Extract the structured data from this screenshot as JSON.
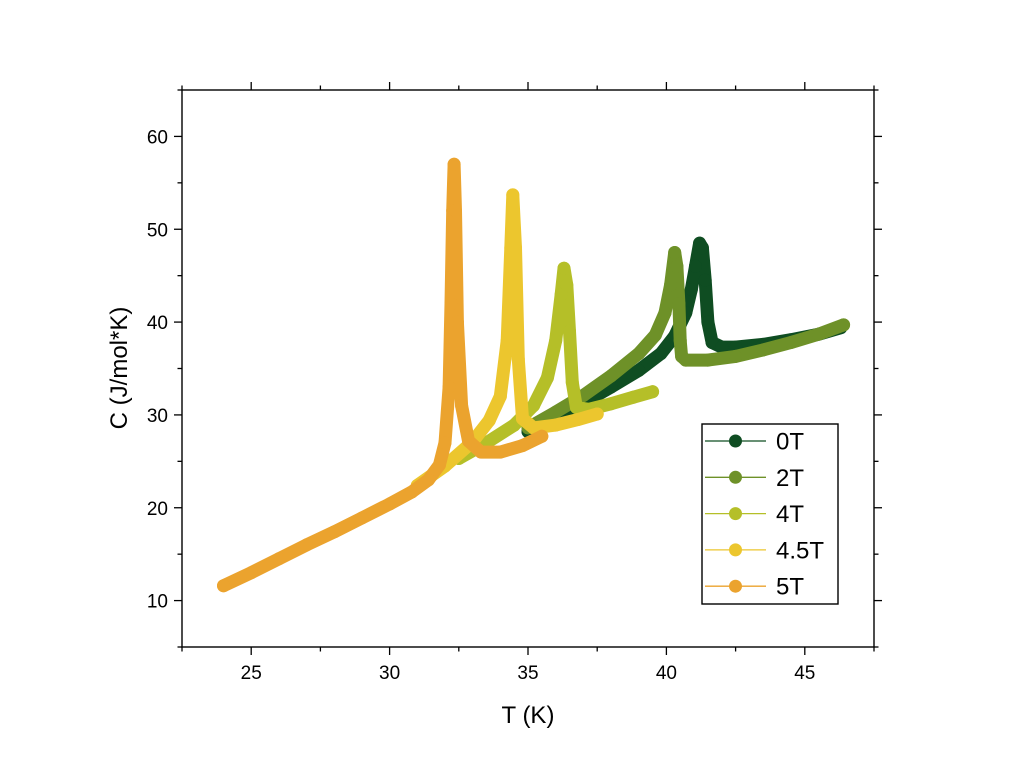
{
  "chart_data": {
    "type": "scatter",
    "title": "",
    "xlabel": "T (K)",
    "ylabel": "C (J/mol*K)",
    "xlim": [
      22.5,
      47.5
    ],
    "ylim": [
      5,
      65
    ],
    "xticks": [
      25,
      30,
      35,
      40,
      45
    ],
    "yticks": [
      10,
      20,
      30,
      40,
      50,
      60
    ],
    "legend_position": "lower-right",
    "series": [
      {
        "name": "0T",
        "color": "#0f4d22",
        "points": [
          [
            35.0,
            28.2
          ],
          [
            36.0,
            29.7
          ],
          [
            37.0,
            31.3
          ],
          [
            38.0,
            33.0
          ],
          [
            39.0,
            34.8
          ],
          [
            39.8,
            36.6
          ],
          [
            40.3,
            38.5
          ],
          [
            40.7,
            41.0
          ],
          [
            40.9,
            43.5
          ],
          [
            41.05,
            46.0
          ],
          [
            41.2,
            48.5
          ],
          [
            41.3,
            48.0
          ],
          [
            41.4,
            44.5
          ],
          [
            41.5,
            40.0
          ],
          [
            41.65,
            37.8
          ],
          [
            42.0,
            37.3
          ],
          [
            42.5,
            37.3
          ],
          [
            43.5,
            37.6
          ],
          [
            44.5,
            38.1
          ],
          [
            45.5,
            38.7
          ],
          [
            46.3,
            39.4
          ]
        ]
      },
      {
        "name": "2T",
        "color": "#6e9128",
        "points": [
          [
            35.0,
            28.6
          ],
          [
            36.0,
            30.3
          ],
          [
            37.0,
            32.1
          ],
          [
            38.0,
            34.2
          ],
          [
            39.0,
            36.6
          ],
          [
            39.6,
            38.6
          ],
          [
            39.95,
            41.0
          ],
          [
            40.15,
            44.0
          ],
          [
            40.3,
            47.5
          ],
          [
            40.38,
            46.0
          ],
          [
            40.45,
            42.0
          ],
          [
            40.5,
            38.0
          ],
          [
            40.55,
            36.3
          ],
          [
            40.7,
            35.9
          ],
          [
            41.5,
            35.9
          ],
          [
            42.5,
            36.3
          ],
          [
            43.5,
            37.0
          ],
          [
            44.5,
            37.8
          ],
          [
            45.5,
            38.7
          ],
          [
            46.4,
            39.7
          ]
        ]
      },
      {
        "name": "4T",
        "color": "#b5bf28",
        "points": [
          [
            32.5,
            25.3
          ],
          [
            33.5,
            27.0
          ],
          [
            34.5,
            28.9
          ],
          [
            35.2,
            31.0
          ],
          [
            35.7,
            34.0
          ],
          [
            36.0,
            38.0
          ],
          [
            36.2,
            43.0
          ],
          [
            36.3,
            45.8
          ],
          [
            36.4,
            44.0
          ],
          [
            36.5,
            39.0
          ],
          [
            36.6,
            33.5
          ],
          [
            36.75,
            30.8
          ],
          [
            37.2,
            30.6
          ],
          [
            38.0,
            31.2
          ],
          [
            38.8,
            31.9
          ],
          [
            39.5,
            32.5
          ]
        ]
      },
      {
        "name": "4.5T",
        "color": "#ecc62e",
        "points": [
          [
            31.0,
            22.4
          ],
          [
            32.0,
            24.5
          ],
          [
            33.0,
            27.1
          ],
          [
            33.6,
            29.4
          ],
          [
            34.0,
            32.0
          ],
          [
            34.25,
            38.0
          ],
          [
            34.38,
            48.0
          ],
          [
            34.45,
            53.7
          ],
          [
            34.55,
            48.0
          ],
          [
            34.65,
            36.0
          ],
          [
            34.8,
            29.6
          ],
          [
            35.2,
            28.6
          ],
          [
            36.0,
            28.9
          ],
          [
            36.8,
            29.5
          ],
          [
            37.5,
            30.1
          ]
        ]
      },
      {
        "name": "5T",
        "color": "#eba32e",
        "points": [
          [
            24.0,
            11.6
          ],
          [
            25.0,
            13.0
          ],
          [
            26.0,
            14.5
          ],
          [
            27.0,
            16.0
          ],
          [
            28.0,
            17.4
          ],
          [
            29.0,
            18.9
          ],
          [
            30.0,
            20.4
          ],
          [
            30.8,
            21.7
          ],
          [
            31.4,
            23.0
          ],
          [
            31.8,
            24.6
          ],
          [
            32.0,
            27.0
          ],
          [
            32.15,
            33.0
          ],
          [
            32.22,
            42.0
          ],
          [
            32.28,
            52.0
          ],
          [
            32.33,
            57.0
          ],
          [
            32.38,
            52.0
          ],
          [
            32.45,
            40.0
          ],
          [
            32.6,
            31.0
          ],
          [
            32.85,
            27.2
          ],
          [
            33.3,
            26.0
          ],
          [
            34.0,
            26.0
          ],
          [
            34.8,
            26.7
          ],
          [
            35.5,
            27.7
          ]
        ]
      }
    ]
  }
}
